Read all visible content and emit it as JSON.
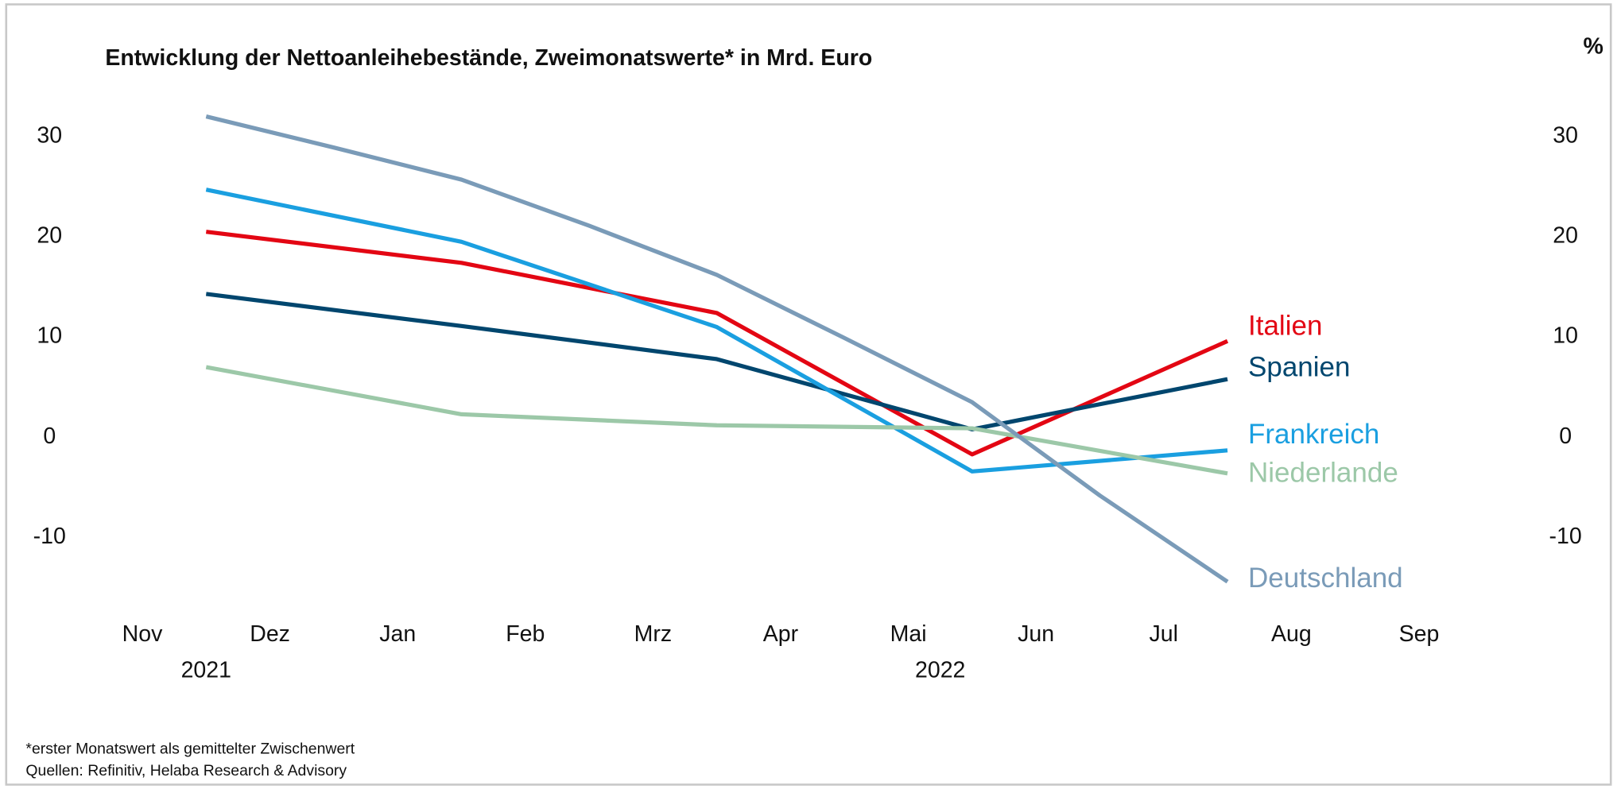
{
  "chart_data": {
    "type": "line",
    "title": "Entwicklung der Nettoanleihebestände, Zweimonatswerte* in Mrd. Euro",
    "y2_label": "%",
    "xlim": [
      -0.5,
      10.5
    ],
    "xticks": [
      {
        "value": 0,
        "label": "Nov"
      },
      {
        "value": 1,
        "label": "Dez"
      },
      {
        "value": 2,
        "label": "Jan"
      },
      {
        "value": 3,
        "label": "Feb"
      },
      {
        "value": 4,
        "label": "Mrz"
      },
      {
        "value": 5,
        "label": "Apr"
      },
      {
        "value": 6,
        "label": "Mai"
      },
      {
        "value": 7,
        "label": "Jun"
      },
      {
        "value": 8,
        "label": "Jul"
      },
      {
        "value": 9,
        "label": "Aug"
      },
      {
        "value": 10,
        "label": "Sep"
      }
    ],
    "year_ticks": [
      {
        "value": 0.5,
        "label": "2021"
      },
      {
        "value": 6.25,
        "label": "2022"
      }
    ],
    "ylim": [
      -15,
      33
    ],
    "yticks": [
      -10,
      0,
      10,
      20,
      30
    ],
    "y2lim": [
      -15,
      33
    ],
    "y2ticks": [
      -10,
      0,
      10,
      20,
      30
    ],
    "grid": false,
    "series": [
      {
        "name": "Italien",
        "color": "#e30613",
        "x": [
          0.5,
          2.5,
          4.5,
          6.5,
          8.5
        ],
        "values": [
          20.5,
          17.4,
          12.4,
          -1.7,
          9.6
        ]
      },
      {
        "name": "Spanien",
        "color": "#00466e",
        "x": [
          0.5,
          2.5,
          4.5,
          6.5,
          8.5
        ],
        "values": [
          14.3,
          11.1,
          7.8,
          0.8,
          5.8
        ]
      },
      {
        "name": "Frankreich",
        "color": "#1a9fe0",
        "x": [
          0.5,
          2.5,
          4.5,
          6.5,
          8.5
        ],
        "values": [
          24.7,
          19.5,
          11.0,
          -3.4,
          -1.3
        ]
      },
      {
        "name": "Niederlande",
        "color": "#9cc8a8",
        "x": [
          0.5,
          2.5,
          4.5,
          6.5,
          8.5
        ],
        "values": [
          7.0,
          2.3,
          1.2,
          0.9,
          -3.6
        ]
      },
      {
        "name": "Deutschland",
        "color": "#7a9bb8",
        "x": [
          0.5,
          1.5,
          2.5,
          3.5,
          4.5,
          5.5,
          6.5,
          7.5,
          8.5
        ],
        "values": [
          32.0,
          28.9,
          25.7,
          21.1,
          16.2,
          9.9,
          3.5,
          -5.8,
          -14.4
        ]
      }
    ],
    "footnotes": [
      "*erster Monatswert als gemittelter Zwischenwert",
      "Quellen: Refinitiv, Helaba Research & Advisory"
    ]
  }
}
